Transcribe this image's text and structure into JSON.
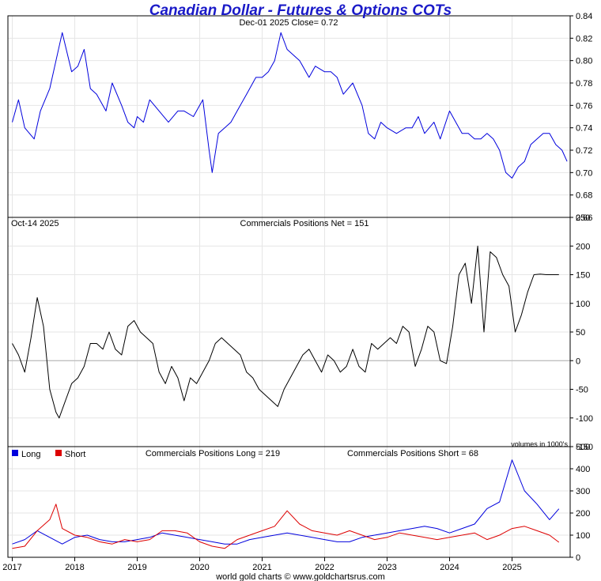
{
  "chart_data": [
    {
      "type": "line",
      "title": "Canadian Dollar - Futures & Options COTs",
      "annotation": "Dec-01  2025   Close= 0.72",
      "ylim": [
        0.66,
        0.84
      ],
      "yticks": [
        "0.84",
        "0.82",
        "0.80",
        "0.78",
        "0.76",
        "0.74",
        "0.72",
        "0.70",
        "0.68",
        "0.66"
      ],
      "grid": true,
      "series": [
        {
          "color": "#0000dd",
          "x": [
            2017.0,
            2017.1,
            2017.2,
            2017.35,
            2017.45,
            2017.6,
            2017.7,
            2017.8,
            2017.95,
            2018.05,
            2018.15,
            2018.25,
            2018.35,
            2018.5,
            2018.6,
            2018.75,
            2018.85,
            2018.95,
            2019.0,
            2019.1,
            2019.2,
            2019.35,
            2019.5,
            2019.65,
            2019.75,
            2019.9,
            2020.0,
            2020.05,
            2020.15,
            2020.2,
            2020.3,
            2020.4,
            2020.5,
            2020.6,
            2020.75,
            2020.9,
            2021.0,
            2021.1,
            2021.2,
            2021.3,
            2021.4,
            2021.5,
            2021.6,
            2021.75,
            2021.85,
            2022.0,
            2022.1,
            2022.2,
            2022.3,
            2022.45,
            2022.6,
            2022.7,
            2022.8,
            2022.9,
            2023.0,
            2023.15,
            2023.3,
            2023.4,
            2023.5,
            2023.6,
            2023.75,
            2023.85,
            2024.0,
            2024.1,
            2024.2,
            2024.3,
            2024.4,
            2024.5,
            2024.6,
            2024.7,
            2024.8,
            2024.9,
            2025.0,
            2025.1,
            2025.2,
            2025.3,
            2025.4,
            2025.5,
            2025.6,
            2025.7,
            2025.8,
            2025.88
          ],
          "y": [
            0.745,
            0.765,
            0.74,
            0.73,
            0.755,
            0.775,
            0.8,
            0.825,
            0.79,
            0.795,
            0.81,
            0.775,
            0.77,
            0.755,
            0.78,
            0.76,
            0.745,
            0.74,
            0.75,
            0.745,
            0.765,
            0.755,
            0.745,
            0.755,
            0.755,
            0.75,
            0.76,
            0.765,
            0.72,
            0.7,
            0.735,
            0.74,
            0.745,
            0.755,
            0.77,
            0.785,
            0.785,
            0.79,
            0.8,
            0.825,
            0.81,
            0.805,
            0.8,
            0.785,
            0.795,
            0.79,
            0.79,
            0.785,
            0.77,
            0.78,
            0.76,
            0.735,
            0.73,
            0.745,
            0.74,
            0.735,
            0.74,
            0.74,
            0.75,
            0.735,
            0.745,
            0.73,
            0.755,
            0.745,
            0.735,
            0.735,
            0.73,
            0.73,
            0.735,
            0.73,
            0.72,
            0.7,
            0.695,
            0.705,
            0.71,
            0.725,
            0.73,
            0.735,
            0.735,
            0.725,
            0.72,
            0.71
          ]
        }
      ]
    },
    {
      "type": "line",
      "title": "Commercials Positions Net = 151",
      "annotation": "Oct-14  2025",
      "note": "volumes in 1000's",
      "ylim": [
        -150,
        250
      ],
      "yticks": [
        "250",
        "200",
        "150",
        "100",
        "50",
        "0",
        "-50",
        "-100",
        "-150"
      ],
      "grid": true,
      "series": [
        {
          "color": "#000000",
          "x": [
            2017.0,
            2017.1,
            2017.2,
            2017.3,
            2017.4,
            2017.5,
            2017.6,
            2017.7,
            2017.75,
            2017.85,
            2017.95,
            2018.05,
            2018.15,
            2018.25,
            2018.35,
            2018.45,
            2018.55,
            2018.65,
            2018.75,
            2018.85,
            2018.95,
            2019.05,
            2019.15,
            2019.25,
            2019.35,
            2019.45,
            2019.55,
            2019.65,
            2019.75,
            2019.85,
            2019.95,
            2020.05,
            2020.15,
            2020.25,
            2020.35,
            2020.45,
            2020.55,
            2020.65,
            2020.75,
            2020.85,
            2020.95,
            2021.05,
            2021.15,
            2021.25,
            2021.35,
            2021.45,
            2021.55,
            2021.65,
            2021.75,
            2021.85,
            2021.95,
            2022.05,
            2022.15,
            2022.25,
            2022.35,
            2022.45,
            2022.55,
            2022.65,
            2022.75,
            2022.85,
            2022.95,
            2023.05,
            2023.15,
            2023.25,
            2023.35,
            2023.45,
            2023.55,
            2023.65,
            2023.75,
            2023.85,
            2023.95,
            2024.05,
            2024.15,
            2024.25,
            2024.35,
            2024.45,
            2024.55,
            2024.65,
            2024.75,
            2024.85,
            2024.95,
            2025.05,
            2025.15,
            2025.25,
            2025.35,
            2025.45,
            2025.55,
            2025.65,
            2025.75
          ],
          "y": [
            30,
            10,
            -20,
            40,
            110,
            60,
            -50,
            -90,
            -100,
            -70,
            -40,
            -30,
            -10,
            30,
            30,
            20,
            50,
            20,
            10,
            60,
            70,
            50,
            40,
            30,
            -20,
            -40,
            -10,
            -30,
            -70,
            -30,
            -40,
            -20,
            0,
            30,
            40,
            30,
            20,
            10,
            -20,
            -30,
            -50,
            -60,
            -70,
            -80,
            -50,
            -30,
            -10,
            10,
            20,
            0,
            -20,
            10,
            0,
            -20,
            -10,
            20,
            -10,
            -20,
            30,
            20,
            30,
            40,
            30,
            60,
            50,
            -10,
            20,
            60,
            50,
            0,
            -5,
            60,
            150,
            170,
            100,
            200,
            50,
            190,
            180,
            150,
            130,
            50,
            80,
            120,
            150,
            151,
            150,
            150,
            150
          ]
        }
      ]
    },
    {
      "type": "line",
      "title": "Commercials Positions Long = 219",
      "subtitle": "Commercials Positions Short = 68",
      "ylim": [
        0,
        500
      ],
      "yticks": [
        "500",
        "400",
        "300",
        "200",
        "100",
        "0"
      ],
      "grid": true,
      "x_tick_labels": [
        "2017",
        "2018",
        "2019",
        "2020",
        "2021",
        "2022",
        "2023",
        "2024",
        "2025"
      ],
      "series": [
        {
          "name": "Long",
          "color": "#0000dd",
          "x": [
            2017.0,
            2017.2,
            2017.4,
            2017.6,
            2017.8,
            2018.0,
            2018.2,
            2018.4,
            2018.6,
            2018.8,
            2019.0,
            2019.2,
            2019.4,
            2019.6,
            2019.8,
            2020.0,
            2020.2,
            2020.4,
            2020.6,
            2020.8,
            2021.0,
            2021.2,
            2021.4,
            2021.6,
            2021.8,
            2022.0,
            2022.2,
            2022.4,
            2022.6,
            2022.8,
            2023.0,
            2023.2,
            2023.4,
            2023.6,
            2023.8,
            2024.0,
            2024.2,
            2024.4,
            2024.6,
            2024.8,
            2025.0,
            2025.2,
            2025.4,
            2025.6,
            2025.75
          ],
          "y": [
            60,
            80,
            120,
            90,
            60,
            90,
            100,
            80,
            70,
            70,
            80,
            90,
            110,
            100,
            90,
            80,
            70,
            60,
            60,
            80,
            90,
            100,
            110,
            100,
            90,
            80,
            70,
            70,
            90,
            100,
            110,
            120,
            130,
            140,
            130,
            110,
            130,
            150,
            220,
            250,
            440,
            300,
            240,
            170,
            219
          ]
        },
        {
          "name": "Short",
          "color": "#dd0000",
          "x": [
            2017.0,
            2017.2,
            2017.4,
            2017.6,
            2017.7,
            2017.8,
            2018.0,
            2018.2,
            2018.4,
            2018.6,
            2018.8,
            2019.0,
            2019.2,
            2019.4,
            2019.6,
            2019.8,
            2020.0,
            2020.2,
            2020.4,
            2020.6,
            2020.8,
            2021.0,
            2021.2,
            2021.4,
            2021.6,
            2021.8,
            2022.0,
            2022.2,
            2022.4,
            2022.6,
            2022.8,
            2023.0,
            2023.2,
            2023.4,
            2023.6,
            2023.8,
            2024.0,
            2024.2,
            2024.4,
            2024.6,
            2024.8,
            2025.0,
            2025.2,
            2025.4,
            2025.6,
            2025.75
          ],
          "y": [
            40,
            50,
            120,
            170,
            240,
            130,
            100,
            90,
            70,
            60,
            80,
            70,
            80,
            120,
            120,
            110,
            70,
            50,
            40,
            80,
            100,
            120,
            140,
            210,
            150,
            120,
            110,
            100,
            120,
            100,
            80,
            90,
            110,
            100,
            90,
            80,
            90,
            100,
            110,
            80,
            100,
            130,
            140,
            120,
            100,
            68
          ]
        }
      ]
    }
  ],
  "footer": "world gold charts © www.goldchartsrus.com"
}
